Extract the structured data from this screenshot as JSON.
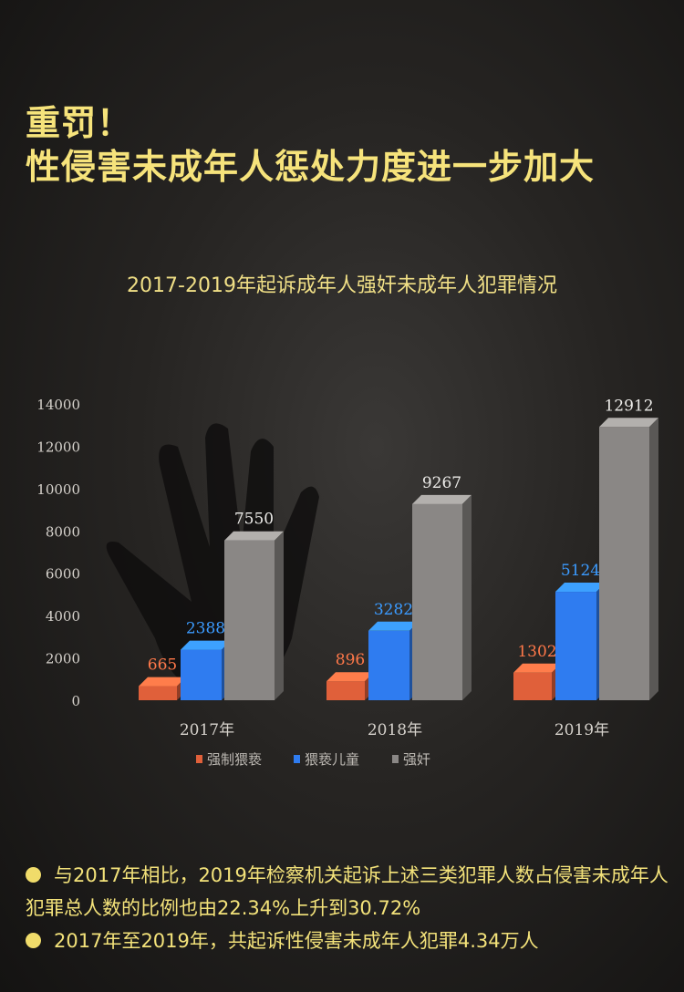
{
  "headline": {
    "line1": "重罚！",
    "line2": "性侵害未成年人惩处力度进一步加大"
  },
  "chart_data": {
    "type": "bar",
    "title": "2017-2019年起诉成年人强奸未成年人犯罪情况",
    "categories": [
      "2017年",
      "2018年",
      "2019年"
    ],
    "series": [
      {
        "name": "强制猥亵",
        "values": [
          665,
          896,
          1302
        ],
        "color": "#e0603a"
      },
      {
        "name": "猥亵儿童",
        "values": [
          2388,
          3282,
          5124
        ],
        "color": "#2f7cf0"
      },
      {
        "name": "强奸",
        "values": [
          7550,
          9267,
          12912
        ],
        "color": "#8a8785"
      }
    ],
    "ylim": [
      0,
      14000
    ],
    "yticks": [
      "0",
      "2000",
      "4000",
      "6000",
      "8000",
      "10000",
      "12000",
      "14000"
    ],
    "data_labels": true,
    "grid": false,
    "legend": "bottom"
  },
  "notes": [
    "与2017年相比，2019年检察机关起诉上述三类犯罪人数占侵害未成年人犯罪总人数的比例也由22.34%上升到30.72%",
    "2017年至2019年，共起诉性侵害未成年人犯罪4.34万人"
  ]
}
